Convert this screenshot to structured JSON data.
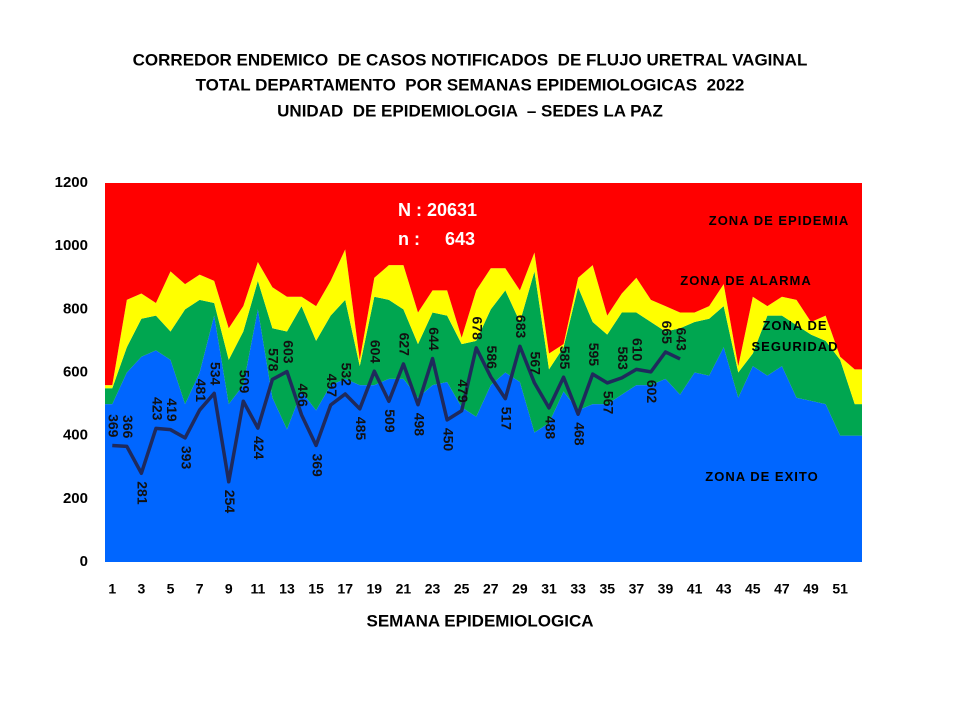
{
  "chart_data": {
    "type": "endemic_corridor",
    "title": [
      "CORREDOR ENDEMICO  DE CASOS NOTIFICADOS  DE FLUJO URETRAL VAGINAL",
      "TOTAL DEPARTAMENTO  POR SEMANAS EPIDEMIOLOGICAS  2022",
      "UNIDAD  DE EPIDEMIOLOGIA  – SEDES LA PAZ"
    ],
    "x_label": "SEMANA EPIDEMIOLOGICA",
    "annotations": [
      "N : 20631",
      "n :     643"
    ],
    "categories": [
      "1",
      null,
      "3",
      null,
      "5",
      null,
      "7",
      null,
      "9",
      null,
      "11",
      null,
      "13",
      null,
      "15",
      null,
      "17",
      null,
      "19",
      null,
      "21",
      null,
      "23",
      null,
      "25",
      null,
      "27",
      null,
      "29",
      null,
      "31",
      null,
      "33",
      null,
      "35",
      null,
      "37",
      null,
      "39",
      null,
      "41",
      null,
      "43",
      null,
      "45",
      null,
      "47",
      null,
      "49",
      null,
      "51",
      null
    ],
    "ylim": [
      0,
      1200
    ],
    "yticks": [
      0,
      200,
      400,
      600,
      800,
      1000,
      1200
    ],
    "series": [
      {
        "name": "ZONA DE  EXITO",
        "color": "#0066ff",
        "values": [
          500,
          600,
          650,
          670,
          640,
          500,
          600,
          780,
          500,
          560,
          800,
          520,
          420,
          540,
          480,
          560,
          580,
          560,
          560,
          580,
          580,
          520,
          560,
          570,
          490,
          460,
          560,
          600,
          570,
          410,
          440,
          540,
          480,
          500,
          500,
          530,
          560,
          560,
          580,
          530,
          600,
          590,
          680,
          520,
          620,
          590,
          620,
          520,
          510,
          500,
          400,
          400
        ]
      },
      {
        "name": "ZONA DE SEGURIDAD",
        "color": "#00a650",
        "values": [
          50,
          80,
          120,
          110,
          90,
          300,
          230,
          40,
          140,
          170,
          90,
          220,
          310,
          270,
          220,
          220,
          250,
          60,
          280,
          250,
          220,
          170,
          230,
          210,
          200,
          240,
          240,
          260,
          190,
          510,
          170,
          140,
          390,
          260,
          220,
          260,
          230,
          200,
          150,
          210,
          160,
          180,
          130,
          80,
          40,
          190,
          160,
          230,
          210,
          200,
          240,
          100
        ]
      },
      {
        "name": "ZONA DE ALARMA",
        "color": "#ffff00",
        "values": [
          10,
          150,
          80,
          40,
          190,
          80,
          80,
          70,
          100,
          80,
          60,
          130,
          110,
          30,
          110,
          110,
          160,
          20,
          60,
          110,
          140,
          100,
          70,
          80,
          20,
          160,
          130,
          70,
          100,
          60,
          50,
          10,
          30,
          180,
          60,
          60,
          110,
          70,
          80,
          50,
          30,
          40,
          70,
          20,
          180,
          30,
          60,
          80,
          40,
          80,
          10,
          110
        ]
      },
      {
        "name": "ZONA DE EPIDEMIA",
        "color": "#ff0000",
        "values": [
          640,
          370,
          350,
          380,
          280,
          320,
          290,
          310,
          460,
          390,
          250,
          330,
          360,
          360,
          390,
          310,
          210,
          560,
          300,
          260,
          260,
          410,
          340,
          340,
          490,
          340,
          270,
          270,
          340,
          220,
          540,
          510,
          300,
          260,
          420,
          350,
          300,
          370,
          390,
          410,
          410,
          390,
          320,
          580,
          360,
          390,
          360,
          370,
          440,
          420,
          550,
          590
        ]
      }
    ],
    "line": {
      "color": "#1f2a5c",
      "values": [
        369,
        366,
        281,
        423,
        419,
        393,
        481,
        534,
        254,
        509,
        424,
        578,
        603,
        466,
        369,
        497,
        532,
        485,
        604,
        509,
        627,
        498,
        644,
        450,
        479,
        678,
        586,
        517,
        683,
        567,
        488,
        585,
        468,
        595,
        567,
        583,
        610,
        602,
        665,
        643,
        null,
        null,
        null,
        null,
        null,
        null,
        null,
        null,
        null,
        null,
        null,
        null
      ]
    }
  }
}
